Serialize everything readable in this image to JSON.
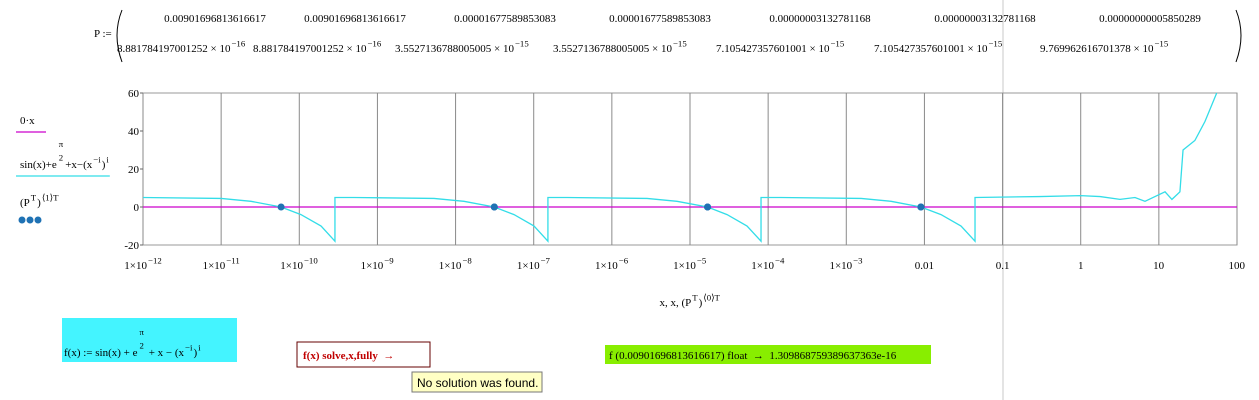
{
  "matrix": {
    "label": "P :=",
    "rows": [
      [
        "0.00901696813616617",
        "0.00901696813616617",
        "0.00001677589853083",
        "0.00001677589853083",
        "0.00000003132781168",
        "0.00000003132781168",
        "0.00000000005850289"
      ],
      [
        {
          "mantissa": "8.881784197001252",
          "times": " × 10",
          "exponent": "−16"
        },
        {
          "mantissa": "8.881784197001252",
          "times": " × 10",
          "exponent": "−16"
        },
        {
          "mantissa": "3.5527136788005005",
          "times": " × 10",
          "exponent": "−15"
        },
        {
          "mantissa": "3.5527136788005005",
          "times": " × 10",
          "exponent": "−15"
        },
        {
          "mantissa": "7.105427357601001",
          "times": " × 10",
          "exponent": "−15"
        },
        {
          "mantissa": "7.105427357601001",
          "times": " × 10",
          "exponent": "−15"
        },
        {
          "mantissa": "9.769962616701378",
          "times": " × 10",
          "exponent": "−15"
        }
      ]
    ]
  },
  "chart_data": {
    "type": "line",
    "x_label": [
      "x, x, (P",
      "T",
      ")",
      "⟨0⟩T"
    ],
    "xscale": "log",
    "xlim": [
      1e-12,
      100
    ],
    "xticks": [
      {
        "value": 1e-12,
        "label": "1×10",
        "exponent": "−12"
      },
      {
        "value": 1e-11,
        "label": "1×10",
        "exponent": "−11"
      },
      {
        "value": 1e-10,
        "label": "1×10",
        "exponent": "−10"
      },
      {
        "value": 1e-09,
        "label": "1×10",
        "exponent": "−9"
      },
      {
        "value": 1e-08,
        "label": "1×10",
        "exponent": "−8"
      },
      {
        "value": 1e-07,
        "label": "1×10",
        "exponent": "−7"
      },
      {
        "value": 1e-06,
        "label": "1×10",
        "exponent": "−6"
      },
      {
        "value": 1e-05,
        "label": "1×10",
        "exponent": "−5"
      },
      {
        "value": 0.0001,
        "label": "1×10",
        "exponent": "−4"
      },
      {
        "value": 0.001,
        "label": "1×10",
        "exponent": "−3"
      },
      0.01,
      0.1,
      1,
      10,
      100
    ],
    "ylim": [
      -20,
      60
    ],
    "yticks": [
      -20,
      0,
      20,
      40,
      60
    ],
    "grid": true,
    "series": [
      {
        "name": [
          "0·x"
        ],
        "color": "#cc00cc",
        "x": [
          1e-12,
          100
        ],
        "values": [
          0,
          0
        ]
      },
      {
        "name": [
          "sin(x)+e",
          "π",
          "2",
          "+x−(x",
          "−i",
          ")",
          "i"
        ],
        "color": "#33dde8",
        "x": [
          1e-12,
          1e-11,
          2.41e-11,
          5.85e-11,
          1.05e-10,
          1.9e-10,
          2.86e-10,
          2.86e-10,
          5e-10,
          5.3e-09,
          1.28e-08,
          3.13e-08,
          5.6e-08,
          1.01e-07,
          1.52e-07,
          1.52e-07,
          2.67e-07,
          2.82e-06,
          6.82e-06,
          1.677e-05,
          2.98e-05,
          5.37e-05,
          8.11e-05,
          8.11e-05,
          0.000146,
          0.00155,
          0.00374,
          0.009017,
          0.0163,
          0.0294,
          0.0444,
          0.0444,
          0.3,
          1,
          1.77,
          3.18,
          4.95,
          6.65,
          12,
          14.7,
          18.6,
          20.4,
          28.9,
          38.9,
          49,
          55
        ],
        "values": [
          5,
          4.5,
          3,
          0,
          -4,
          -10,
          -18,
          5,
          5,
          4.5,
          3,
          0,
          -4,
          -10,
          -18,
          5,
          5,
          4.5,
          3,
          0,
          -4,
          -10,
          -18,
          5,
          5,
          4.5,
          3,
          0,
          -4,
          -10,
          -18,
          5,
          5.5,
          6,
          5.5,
          4,
          5,
          3,
          8,
          4,
          8,
          30,
          35,
          45,
          55,
          60
        ]
      },
      {
        "name": [
          "(P",
          "T",
          ")",
          "⟨1⟩T"
        ],
        "color": "#1f72b4",
        "marker": "dot",
        "x": [
          0.00901696813616617,
          0.00901696813616617,
          1.677589853083e-05,
          1.677589853083e-05,
          3.132781168e-08,
          3.132781168e-08,
          5.850289e-11
        ],
        "values": [
          8.881784197001252e-16,
          8.881784197001252e-16,
          3.5527136788005005e-15,
          3.5527136788005005e-15,
          7.105427357601001e-15,
          7.105427357601001e-15,
          9.769962616701378e-15
        ]
      }
    ]
  },
  "definition": [
    "f(x) := sin(x) + e",
    "π",
    "2",
    " + x − ",
    "(x",
    "−i",
    ")",
    "i"
  ],
  "solve": "f(x) solve,x,fully  →",
  "tooltip": "No solution was found.",
  "evaluation": "f (0.00901696813616617) float  →  1.309868759389637363e-16"
}
